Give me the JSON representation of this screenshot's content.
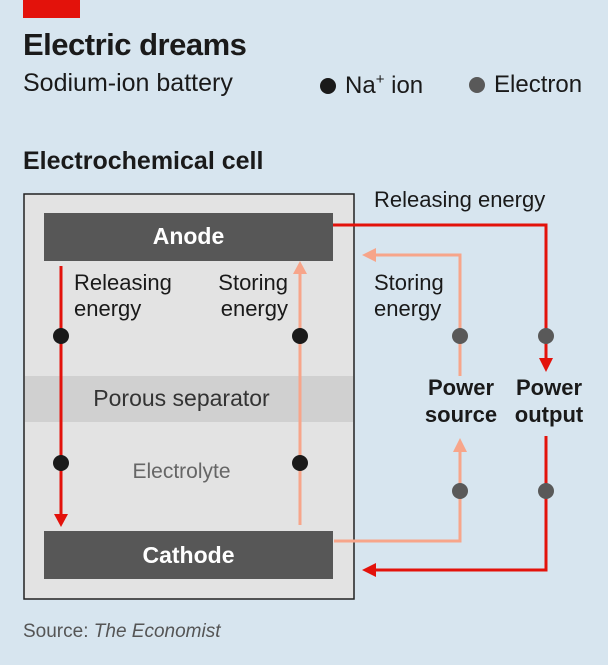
{
  "title": "Electric dreams",
  "subtitle": "Sodium-ion battery",
  "legend": {
    "na_ion_label": "Na+ ion",
    "na_ion_color": "#1a1a1a",
    "electron_label": "Electron",
    "electron_color": "#595959"
  },
  "section_title": "Electrochemical cell",
  "cell": {
    "anode": "Anode",
    "cathode": "Cathode",
    "separator": "Porous separator",
    "electrolyte": "Electrolyte",
    "releasing_energy": "Releasing energy",
    "storing_energy": "Storing energy"
  },
  "circuit": {
    "releasing_energy": "Releasing energy",
    "storing_energy": "Storing energy",
    "power_source": "Power source",
    "power_output": "Power output"
  },
  "colors": {
    "background": "#d7e5ef",
    "brand_red": "#e3120b",
    "release_arrow": "#e3120b",
    "store_arrow": "#f7a58a",
    "electrode": "#575757",
    "cell_fill": "#e3e3e3",
    "separator_fill": "#d0d0d0"
  },
  "source": {
    "prefix": "Source: ",
    "publication": "The Economist"
  }
}
